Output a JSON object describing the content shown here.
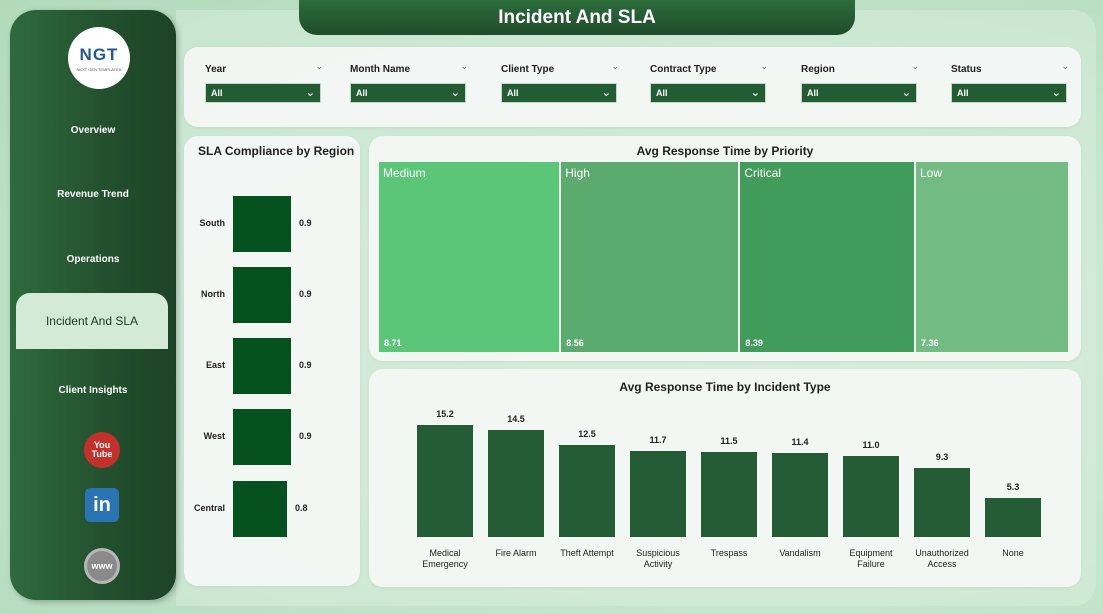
{
  "title": "Incident And SLA",
  "logo": {
    "text": "NGT",
    "subtext": "NEXT GEN TEMPLATES"
  },
  "nav": {
    "items": [
      {
        "label": "Overview"
      },
      {
        "label": "Revenue Trend"
      },
      {
        "label": "Operations"
      },
      {
        "label": "Incident And SLA",
        "active": true
      },
      {
        "label": "Client Insights"
      }
    ]
  },
  "social": {
    "youtube": "You\nTube",
    "linkedin": "in",
    "web": "www"
  },
  "filters": [
    {
      "label": "Year",
      "value": "All"
    },
    {
      "label": "Month Name",
      "value": "All"
    },
    {
      "label": "Client Type",
      "value": "All"
    },
    {
      "label": "Contract Type",
      "value": "All"
    },
    {
      "label": "Region",
      "value": "All"
    },
    {
      "label": "Status",
      "value": "All"
    }
  ],
  "colors": {
    "primary": "#225c32",
    "bar": "#245c35",
    "sla_bar": "#06521f"
  },
  "charts": {
    "sla": {
      "title": "SLA Compliance by Region",
      "chart_data": {
        "type": "bar",
        "orientation": "horizontal",
        "categories": [
          "South",
          "North",
          "East",
          "West",
          "Central"
        ],
        "values": [
          0.9,
          0.9,
          0.9,
          0.9,
          0.8
        ],
        "labels": [
          "0.9",
          "0.9",
          "0.9",
          "0.9",
          "0.8"
        ]
      }
    },
    "priority": {
      "title": "Avg Response Time by Priority",
      "chart_data": {
        "type": "treemap",
        "categories": [
          "Medium",
          "High",
          "Critical",
          "Low"
        ],
        "values": [
          8.71,
          8.56,
          8.39,
          7.36
        ],
        "labels": [
          "8.71",
          "8.56",
          "8.39",
          "7.36"
        ],
        "colors": [
          "#5bc677",
          "#5aab6d",
          "#419b5a",
          "#72bc84"
        ]
      }
    },
    "incident": {
      "title": "Avg Response Time by Incident Type",
      "chart_data": {
        "type": "bar",
        "categories": [
          "Medical\nEmergency",
          "Fire Alarm",
          "Theft Attempt",
          "Suspicious\nActivity",
          "Trespass",
          "Vandalism",
          "Equipment\nFailure",
          "Unauthorized\nAccess",
          "None"
        ],
        "values": [
          15.2,
          14.5,
          12.5,
          11.7,
          11.5,
          11.4,
          11.0,
          9.3,
          5.3
        ],
        "labels": [
          "15.2",
          "14.5",
          "12.5",
          "11.7",
          "11.5",
          "11.4",
          "11.0",
          "9.3",
          "5.3"
        ]
      }
    }
  }
}
